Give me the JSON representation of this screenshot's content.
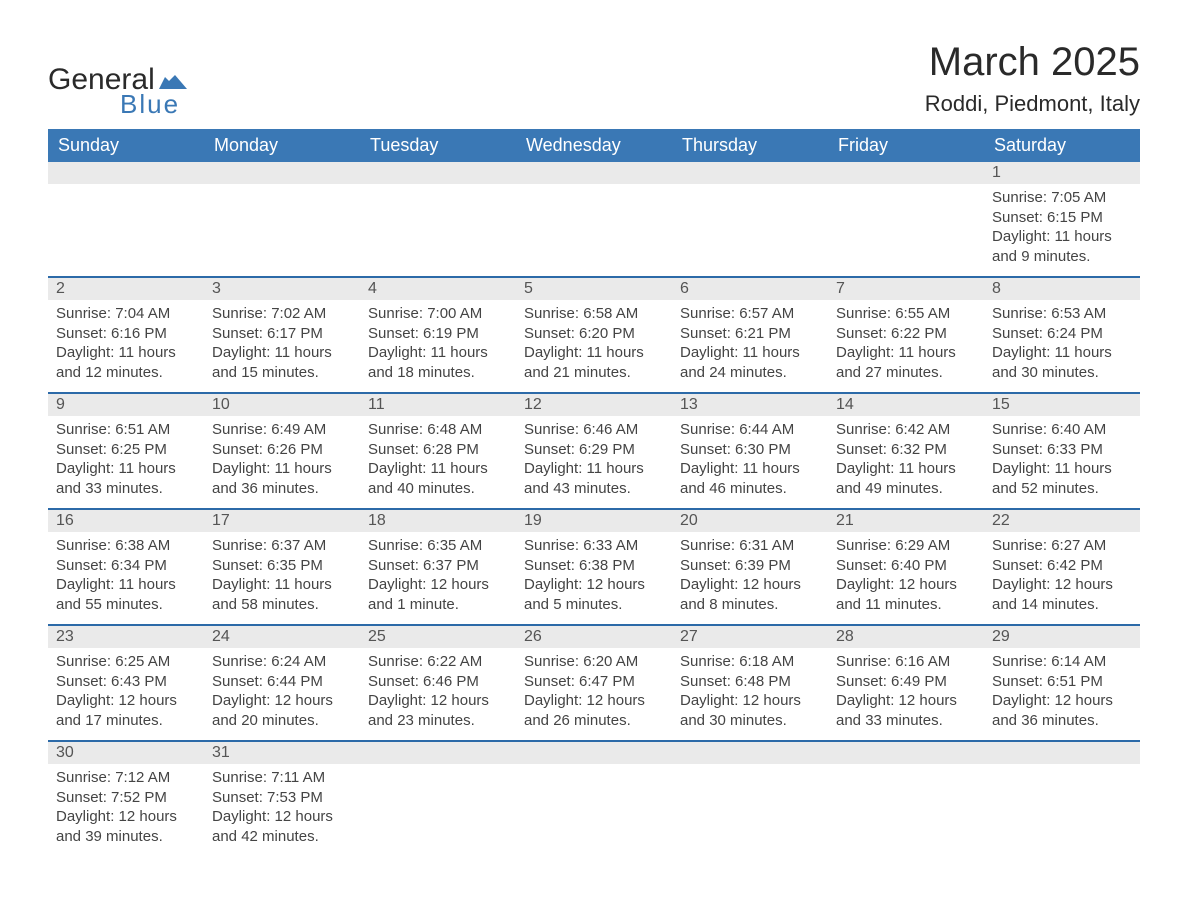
{
  "brand": {
    "word1": "General",
    "word2": "Blue",
    "accent_color": "#3a78b5"
  },
  "title": {
    "month": "March 2025",
    "location": "Roddi, Piedmont, Italy"
  },
  "style": {
    "header_bg": "#3a78b5",
    "header_text": "#ffffff",
    "row_divider": "#2c6aa8",
    "daynum_bg": "#eaeaea",
    "body_bg": "#ffffff",
    "text_color": "#444444",
    "font_family": "Arial",
    "title_fontsize_pt": 30,
    "location_fontsize_pt": 17,
    "header_fontsize_pt": 14,
    "cell_fontsize_pt": 11
  },
  "weekdays": [
    "Sunday",
    "Monday",
    "Tuesday",
    "Wednesday",
    "Thursday",
    "Friday",
    "Saturday"
  ],
  "weeks": [
    [
      null,
      null,
      null,
      null,
      null,
      null,
      {
        "n": "1",
        "sunrise": "Sunrise: 7:05 AM",
        "sunset": "Sunset: 6:15 PM",
        "daylight1": "Daylight: 11 hours",
        "daylight2": "and 9 minutes."
      }
    ],
    [
      {
        "n": "2",
        "sunrise": "Sunrise: 7:04 AM",
        "sunset": "Sunset: 6:16 PM",
        "daylight1": "Daylight: 11 hours",
        "daylight2": "and 12 minutes."
      },
      {
        "n": "3",
        "sunrise": "Sunrise: 7:02 AM",
        "sunset": "Sunset: 6:17 PM",
        "daylight1": "Daylight: 11 hours",
        "daylight2": "and 15 minutes."
      },
      {
        "n": "4",
        "sunrise": "Sunrise: 7:00 AM",
        "sunset": "Sunset: 6:19 PM",
        "daylight1": "Daylight: 11 hours",
        "daylight2": "and 18 minutes."
      },
      {
        "n": "5",
        "sunrise": "Sunrise: 6:58 AM",
        "sunset": "Sunset: 6:20 PM",
        "daylight1": "Daylight: 11 hours",
        "daylight2": "and 21 minutes."
      },
      {
        "n": "6",
        "sunrise": "Sunrise: 6:57 AM",
        "sunset": "Sunset: 6:21 PM",
        "daylight1": "Daylight: 11 hours",
        "daylight2": "and 24 minutes."
      },
      {
        "n": "7",
        "sunrise": "Sunrise: 6:55 AM",
        "sunset": "Sunset: 6:22 PM",
        "daylight1": "Daylight: 11 hours",
        "daylight2": "and 27 minutes."
      },
      {
        "n": "8",
        "sunrise": "Sunrise: 6:53 AM",
        "sunset": "Sunset: 6:24 PM",
        "daylight1": "Daylight: 11 hours",
        "daylight2": "and 30 minutes."
      }
    ],
    [
      {
        "n": "9",
        "sunrise": "Sunrise: 6:51 AM",
        "sunset": "Sunset: 6:25 PM",
        "daylight1": "Daylight: 11 hours",
        "daylight2": "and 33 minutes."
      },
      {
        "n": "10",
        "sunrise": "Sunrise: 6:49 AM",
        "sunset": "Sunset: 6:26 PM",
        "daylight1": "Daylight: 11 hours",
        "daylight2": "and 36 minutes."
      },
      {
        "n": "11",
        "sunrise": "Sunrise: 6:48 AM",
        "sunset": "Sunset: 6:28 PM",
        "daylight1": "Daylight: 11 hours",
        "daylight2": "and 40 minutes."
      },
      {
        "n": "12",
        "sunrise": "Sunrise: 6:46 AM",
        "sunset": "Sunset: 6:29 PM",
        "daylight1": "Daylight: 11 hours",
        "daylight2": "and 43 minutes."
      },
      {
        "n": "13",
        "sunrise": "Sunrise: 6:44 AM",
        "sunset": "Sunset: 6:30 PM",
        "daylight1": "Daylight: 11 hours",
        "daylight2": "and 46 minutes."
      },
      {
        "n": "14",
        "sunrise": "Sunrise: 6:42 AM",
        "sunset": "Sunset: 6:32 PM",
        "daylight1": "Daylight: 11 hours",
        "daylight2": "and 49 minutes."
      },
      {
        "n": "15",
        "sunrise": "Sunrise: 6:40 AM",
        "sunset": "Sunset: 6:33 PM",
        "daylight1": "Daylight: 11 hours",
        "daylight2": "and 52 minutes."
      }
    ],
    [
      {
        "n": "16",
        "sunrise": "Sunrise: 6:38 AM",
        "sunset": "Sunset: 6:34 PM",
        "daylight1": "Daylight: 11 hours",
        "daylight2": "and 55 minutes."
      },
      {
        "n": "17",
        "sunrise": "Sunrise: 6:37 AM",
        "sunset": "Sunset: 6:35 PM",
        "daylight1": "Daylight: 11 hours",
        "daylight2": "and 58 minutes."
      },
      {
        "n": "18",
        "sunrise": "Sunrise: 6:35 AM",
        "sunset": "Sunset: 6:37 PM",
        "daylight1": "Daylight: 12 hours",
        "daylight2": "and 1 minute."
      },
      {
        "n": "19",
        "sunrise": "Sunrise: 6:33 AM",
        "sunset": "Sunset: 6:38 PM",
        "daylight1": "Daylight: 12 hours",
        "daylight2": "and 5 minutes."
      },
      {
        "n": "20",
        "sunrise": "Sunrise: 6:31 AM",
        "sunset": "Sunset: 6:39 PM",
        "daylight1": "Daylight: 12 hours",
        "daylight2": "and 8 minutes."
      },
      {
        "n": "21",
        "sunrise": "Sunrise: 6:29 AM",
        "sunset": "Sunset: 6:40 PM",
        "daylight1": "Daylight: 12 hours",
        "daylight2": "and 11 minutes."
      },
      {
        "n": "22",
        "sunrise": "Sunrise: 6:27 AM",
        "sunset": "Sunset: 6:42 PM",
        "daylight1": "Daylight: 12 hours",
        "daylight2": "and 14 minutes."
      }
    ],
    [
      {
        "n": "23",
        "sunrise": "Sunrise: 6:25 AM",
        "sunset": "Sunset: 6:43 PM",
        "daylight1": "Daylight: 12 hours",
        "daylight2": "and 17 minutes."
      },
      {
        "n": "24",
        "sunrise": "Sunrise: 6:24 AM",
        "sunset": "Sunset: 6:44 PM",
        "daylight1": "Daylight: 12 hours",
        "daylight2": "and 20 minutes."
      },
      {
        "n": "25",
        "sunrise": "Sunrise: 6:22 AM",
        "sunset": "Sunset: 6:46 PM",
        "daylight1": "Daylight: 12 hours",
        "daylight2": "and 23 minutes."
      },
      {
        "n": "26",
        "sunrise": "Sunrise: 6:20 AM",
        "sunset": "Sunset: 6:47 PM",
        "daylight1": "Daylight: 12 hours",
        "daylight2": "and 26 minutes."
      },
      {
        "n": "27",
        "sunrise": "Sunrise: 6:18 AM",
        "sunset": "Sunset: 6:48 PM",
        "daylight1": "Daylight: 12 hours",
        "daylight2": "and 30 minutes."
      },
      {
        "n": "28",
        "sunrise": "Sunrise: 6:16 AM",
        "sunset": "Sunset: 6:49 PM",
        "daylight1": "Daylight: 12 hours",
        "daylight2": "and 33 minutes."
      },
      {
        "n": "29",
        "sunrise": "Sunrise: 6:14 AM",
        "sunset": "Sunset: 6:51 PM",
        "daylight1": "Daylight: 12 hours",
        "daylight2": "and 36 minutes."
      }
    ],
    [
      {
        "n": "30",
        "sunrise": "Sunrise: 7:12 AM",
        "sunset": "Sunset: 7:52 PM",
        "daylight1": "Daylight: 12 hours",
        "daylight2": "and 39 minutes."
      },
      {
        "n": "31",
        "sunrise": "Sunrise: 7:11 AM",
        "sunset": "Sunset: 7:53 PM",
        "daylight1": "Daylight: 12 hours",
        "daylight2": "and 42 minutes."
      },
      null,
      null,
      null,
      null,
      null
    ]
  ]
}
